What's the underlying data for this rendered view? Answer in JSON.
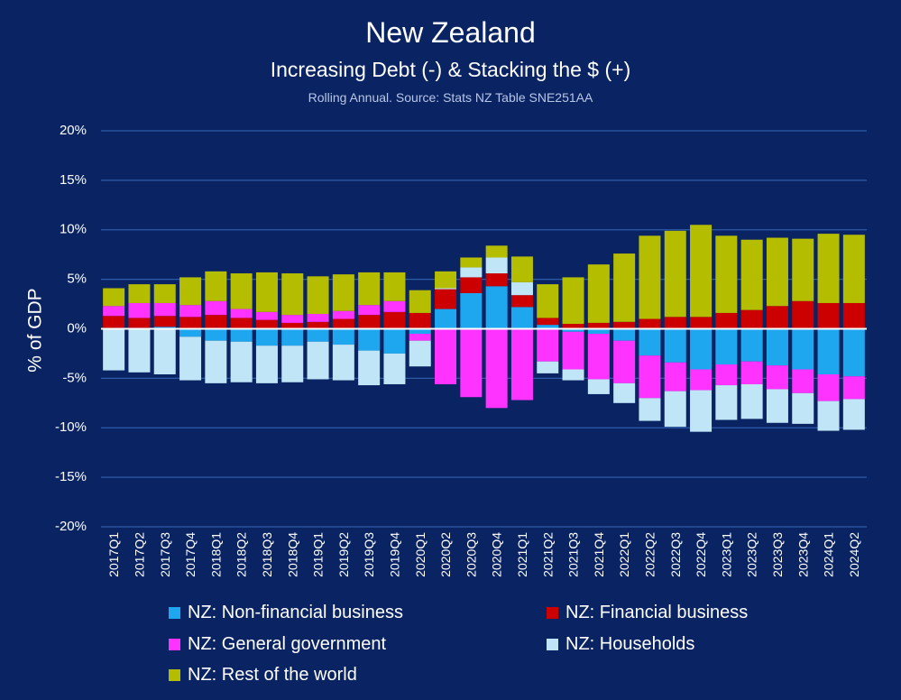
{
  "chart_data": {
    "type": "bar",
    "stacked": true,
    "title": "New Zealand",
    "subtitle": "Increasing Debt (-) & Stacking the $ (+)",
    "source_note": "Rolling Annual. Source: Stats NZ Table SNE251AA",
    "ylabel": "% of GDP",
    "xlabel": "",
    "ylim": [
      -20,
      20
    ],
    "yticks": [
      20,
      15,
      10,
      5,
      0,
      -5,
      -10,
      -15,
      -20
    ],
    "ytick_labels": [
      "20%",
      "15%",
      "10%",
      "5%",
      "0%",
      "-5%",
      "-10%",
      "-15%",
      "-20%"
    ],
    "categories": [
      "2017Q1",
      "2017Q2",
      "2017Q3",
      "2017Q4",
      "2018Q1",
      "2018Q2",
      "2018Q3",
      "2018Q4",
      "2019Q1",
      "2019Q2",
      "2019Q3",
      "2019Q4",
      "2020Q1",
      "2020Q2",
      "2020Q3",
      "2020Q4",
      "2021Q1",
      "2021Q2",
      "2021Q3",
      "2021Q4",
      "2022Q1",
      "2022Q2",
      "2022Q3",
      "2022Q4",
      "2023Q1",
      "2023Q2",
      "2023Q3",
      "2023Q4",
      "2024Q1",
      "2024Q2"
    ],
    "series": [
      {
        "name": "NZ: Non-financial business",
        "color": "#1ea7ef",
        "values": [
          0.1,
          0.1,
          0.2,
          -0.8,
          -1.2,
          -1.3,
          -1.7,
          -1.7,
          -1.3,
          -1.6,
          -2.2,
          -2.5,
          -0.5,
          2.0,
          3.6,
          4.3,
          2.2,
          0.4,
          -0.3,
          -0.5,
          -1.2,
          -2.7,
          -3.4,
          -4.1,
          -3.6,
          -3.3,
          -3.7,
          -4.1,
          -4.6,
          -4.8
        ]
      },
      {
        "name": "NZ: Financial business",
        "color": "#cc0000",
        "values": [
          1.2,
          1.0,
          1.1,
          1.2,
          1.4,
          1.1,
          0.9,
          0.6,
          0.7,
          1.0,
          1.4,
          1.7,
          1.6,
          2.0,
          1.6,
          1.3,
          1.2,
          0.7,
          0.5,
          0.6,
          0.7,
          1.0,
          1.2,
          1.2,
          1.6,
          1.9,
          2.3,
          2.8,
          2.6,
          2.6
        ]
      },
      {
        "name": "NZ: General government",
        "color": "#ff33ff",
        "values": [
          1.0,
          1.5,
          1.3,
          1.2,
          1.4,
          0.9,
          0.8,
          0.8,
          0.8,
          0.8,
          1.0,
          1.1,
          -0.7,
          -5.6,
          -6.9,
          -8.0,
          -7.2,
          -3.3,
          -3.8,
          -4.6,
          -4.3,
          -4.3,
          -2.9,
          -2.1,
          -2.1,
          -2.3,
          -2.4,
          -2.4,
          -2.7,
          -2.3
        ]
      },
      {
        "name": "NZ: Households",
        "color": "#bfe5f7",
        "values": [
          -4.2,
          -4.4,
          -4.6,
          -4.4,
          -4.3,
          -4.1,
          -3.8,
          -3.7,
          -3.8,
          -3.6,
          -3.5,
          -3.1,
          -2.6,
          0.1,
          1.0,
          1.6,
          1.3,
          -1.2,
          -1.1,
          -1.5,
          -2.0,
          -2.3,
          -3.6,
          -4.2,
          -3.5,
          -3.5,
          -3.4,
          -3.1,
          -3.0,
          -3.1
        ]
      },
      {
        "name": "NZ: Rest of the world",
        "color": "#b5bd00",
        "values": [
          1.8,
          1.9,
          1.9,
          2.8,
          3.0,
          3.6,
          4.0,
          4.2,
          3.8,
          3.7,
          3.3,
          2.9,
          2.3,
          1.7,
          1.0,
          1.2,
          2.6,
          3.4,
          4.7,
          5.9,
          6.9,
          8.4,
          8.7,
          9.3,
          7.8,
          7.1,
          6.9,
          6.3,
          7.0,
          6.9
        ]
      }
    ],
    "legend_position": "bottom"
  }
}
